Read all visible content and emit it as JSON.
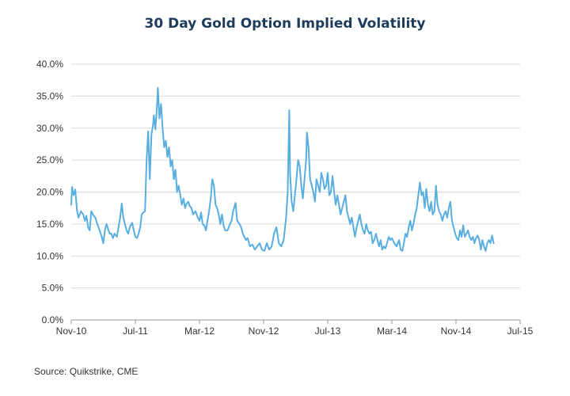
{
  "chart_data": {
    "type": "line",
    "title": "30 Day Gold Option Implied Volatility",
    "source": "Source: Quikstrike, CME",
    "xlabel": "",
    "ylabel": "",
    "x_ticks": [
      "Nov-10",
      "Jul-11",
      "Mar-12",
      "Nov-12",
      "Jul-13",
      "Mar-14",
      "Nov-14",
      "Jul-15"
    ],
    "y_ticks": [
      "0.0%",
      "5.0%",
      "10.0%",
      "15.0%",
      "20.0%",
      "25.0%",
      "30.0%",
      "35.0%",
      "40.0%"
    ],
    "ylim": [
      0,
      40
    ],
    "x_range_months": [
      0,
      56
    ],
    "grid": "horizontal",
    "series": [
      {
        "color": "#58aee0",
        "points": [
          [
            0.0,
            18.0
          ],
          [
            0.1,
            20.8
          ],
          [
            0.3,
            19.5
          ],
          [
            0.5,
            20.4
          ],
          [
            0.7,
            17.3
          ],
          [
            0.9,
            16.0
          ],
          [
            1.2,
            17.0
          ],
          [
            1.5,
            16.5
          ],
          [
            1.7,
            15.5
          ],
          [
            1.9,
            16.3
          ],
          [
            2.1,
            14.5
          ],
          [
            2.3,
            14.0
          ],
          [
            2.5,
            17.0
          ],
          [
            2.7,
            16.5
          ],
          [
            3.0,
            16.0
          ],
          [
            3.2,
            15.2
          ],
          [
            3.4,
            14.5
          ],
          [
            3.6,
            13.8
          ],
          [
            3.8,
            13.0
          ],
          [
            4.0,
            12.0
          ],
          [
            4.2,
            14.0
          ],
          [
            4.4,
            15.0
          ],
          [
            4.6,
            14.2
          ],
          [
            4.8,
            13.5
          ],
          [
            5.0,
            13.5
          ],
          [
            5.2,
            12.8
          ],
          [
            5.4,
            13.5
          ],
          [
            5.7,
            13.0
          ],
          [
            5.9,
            14.5
          ],
          [
            6.1,
            16.0
          ],
          [
            6.3,
            18.2
          ],
          [
            6.5,
            16.0
          ],
          [
            6.7,
            15.0
          ],
          [
            6.9,
            14.0
          ],
          [
            7.1,
            13.5
          ],
          [
            7.3,
            14.5
          ],
          [
            7.6,
            15.2
          ],
          [
            7.8,
            14.0
          ],
          [
            8.0,
            13.0
          ],
          [
            8.2,
            12.8
          ],
          [
            8.4,
            13.5
          ],
          [
            8.6,
            14.5
          ],
          [
            8.8,
            16.5
          ],
          [
            9.0,
            16.8
          ],
          [
            9.2,
            17.0
          ],
          [
            9.4,
            25.0
          ],
          [
            9.6,
            29.5
          ],
          [
            9.8,
            22.0
          ],
          [
            10.0,
            29.0
          ],
          [
            10.2,
            30.5
          ],
          [
            10.3,
            32.0
          ],
          [
            10.5,
            29.8
          ],
          [
            10.7,
            33.5
          ],
          [
            10.8,
            36.3
          ],
          [
            11.0,
            31.5
          ],
          [
            11.2,
            33.8
          ],
          [
            11.4,
            30.0
          ],
          [
            11.6,
            27.0
          ],
          [
            11.8,
            28.0
          ],
          [
            12.0,
            25.5
          ],
          [
            12.2,
            27.0
          ],
          [
            12.4,
            24.0
          ],
          [
            12.6,
            25.0
          ],
          [
            12.8,
            22.0
          ],
          [
            13.0,
            23.5
          ],
          [
            13.2,
            20.0
          ],
          [
            13.4,
            21.0
          ],
          [
            13.6,
            19.5
          ],
          [
            13.8,
            18.0
          ],
          [
            14.0,
            19.0
          ],
          [
            14.2,
            17.5
          ],
          [
            14.4,
            18.2
          ],
          [
            14.6,
            18.5
          ],
          [
            14.8,
            17.8
          ],
          [
            15.0,
            17.5
          ],
          [
            15.2,
            16.5
          ],
          [
            15.5,
            17.0
          ],
          [
            15.8,
            16.0
          ],
          [
            16.0,
            15.5
          ],
          [
            16.2,
            16.8
          ],
          [
            16.4,
            15.0
          ],
          [
            16.6,
            14.8
          ],
          [
            16.8,
            14.0
          ],
          [
            17.0,
            15.5
          ],
          [
            17.2,
            17.0
          ],
          [
            17.4,
            19.0
          ],
          [
            17.6,
            22.0
          ],
          [
            17.8,
            21.0
          ],
          [
            18.0,
            18.0
          ],
          [
            18.2,
            17.5
          ],
          [
            18.4,
            16.5
          ],
          [
            18.6,
            15.0
          ],
          [
            18.8,
            16.5
          ],
          [
            19.0,
            14.8
          ],
          [
            19.2,
            14.0
          ],
          [
            19.5,
            14.0
          ],
          [
            19.8,
            15.0
          ],
          [
            20.0,
            15.5
          ],
          [
            20.2,
            17.0
          ],
          [
            20.5,
            18.3
          ],
          [
            20.7,
            15.5
          ],
          [
            21.0,
            15.0
          ],
          [
            21.2,
            14.5
          ],
          [
            21.4,
            13.5
          ],
          [
            21.6,
            13.0
          ],
          [
            21.8,
            12.5
          ],
          [
            22.0,
            12.8
          ],
          [
            22.3,
            11.5
          ],
          [
            22.6,
            11.8
          ],
          [
            22.9,
            11.0
          ],
          [
            23.2,
            11.5
          ],
          [
            23.5,
            12.0
          ],
          [
            23.8,
            11.0
          ],
          [
            24.1,
            10.8
          ],
          [
            24.4,
            12.0
          ],
          [
            24.7,
            11.0
          ],
          [
            25.0,
            11.5
          ],
          [
            25.3,
            13.5
          ],
          [
            25.6,
            14.5
          ],
          [
            25.9,
            12.0
          ],
          [
            26.2,
            11.5
          ],
          [
            26.5,
            12.5
          ],
          [
            26.8,
            16.0
          ],
          [
            27.0,
            20.0
          ],
          [
            27.2,
            32.8
          ],
          [
            27.3,
            23.0
          ],
          [
            27.5,
            18.5
          ],
          [
            27.7,
            17.0
          ],
          [
            27.9,
            19.5
          ],
          [
            28.1,
            22.0
          ],
          [
            28.3,
            25.0
          ],
          [
            28.5,
            24.0
          ],
          [
            28.7,
            21.0
          ],
          [
            28.9,
            19.0
          ],
          [
            29.1,
            22.0
          ],
          [
            29.3,
            25.0
          ],
          [
            29.4,
            29.3
          ],
          [
            29.6,
            27.0
          ],
          [
            29.8,
            22.0
          ],
          [
            30.0,
            21.0
          ],
          [
            30.2,
            20.0
          ],
          [
            30.4,
            18.5
          ],
          [
            30.6,
            22.0
          ],
          [
            30.8,
            21.0
          ],
          [
            31.0,
            20.0
          ],
          [
            31.2,
            23.0
          ],
          [
            31.4,
            22.0
          ],
          [
            31.6,
            20.5
          ],
          [
            31.8,
            21.0
          ],
          [
            32.0,
            23.0
          ],
          [
            32.2,
            19.5
          ],
          [
            32.4,
            20.0
          ],
          [
            32.6,
            22.5
          ],
          [
            32.8,
            20.0
          ],
          [
            33.0,
            18.0
          ],
          [
            33.2,
            19.5
          ],
          [
            33.4,
            18.0
          ],
          [
            33.6,
            16.5
          ],
          [
            33.8,
            17.5
          ],
          [
            34.0,
            18.5
          ],
          [
            34.2,
            19.5
          ],
          [
            34.4,
            17.0
          ],
          [
            34.6,
            16.0
          ],
          [
            34.8,
            15.0
          ],
          [
            35.0,
            16.0
          ],
          [
            35.2,
            14.5
          ],
          [
            35.4,
            13.0
          ],
          [
            35.6,
            14.5
          ],
          [
            35.8,
            15.5
          ],
          [
            36.0,
            16.5
          ],
          [
            36.2,
            15.0
          ],
          [
            36.4,
            14.0
          ],
          [
            36.6,
            13.5
          ],
          [
            36.8,
            15.0
          ],
          [
            37.0,
            14.0
          ],
          [
            37.2,
            13.5
          ],
          [
            37.4,
            13.8
          ],
          [
            37.6,
            12.0
          ],
          [
            37.8,
            12.5
          ],
          [
            38.0,
            13.5
          ],
          [
            38.2,
            12.5
          ],
          [
            38.4,
            11.5
          ],
          [
            38.6,
            12.5
          ],
          [
            38.8,
            11.0
          ],
          [
            39.0,
            11.5
          ],
          [
            39.2,
            11.2
          ],
          [
            39.4,
            12.0
          ],
          [
            39.6,
            13.0
          ],
          [
            39.8,
            12.5
          ],
          [
            40.0,
            12.8
          ],
          [
            40.3,
            12.0
          ],
          [
            40.6,
            11.5
          ],
          [
            40.9,
            12.5
          ],
          [
            41.1,
            11.0
          ],
          [
            41.3,
            10.8
          ],
          [
            41.5,
            12.0
          ],
          [
            41.7,
            13.5
          ],
          [
            41.9,
            13.0
          ],
          [
            42.1,
            14.5
          ],
          [
            42.3,
            15.5
          ],
          [
            42.5,
            14.0
          ],
          [
            42.7,
            15.0
          ],
          [
            42.9,
            16.5
          ],
          [
            43.1,
            17.5
          ],
          [
            43.3,
            19.5
          ],
          [
            43.5,
            21.5
          ],
          [
            43.7,
            19.5
          ],
          [
            43.9,
            20.0
          ],
          [
            44.1,
            17.5
          ],
          [
            44.3,
            20.5
          ],
          [
            44.5,
            18.0
          ],
          [
            44.7,
            17.0
          ],
          [
            44.9,
            18.5
          ],
          [
            45.1,
            16.5
          ],
          [
            45.3,
            17.0
          ],
          [
            45.5,
            21.0
          ],
          [
            45.7,
            18.0
          ],
          [
            45.9,
            17.0
          ],
          [
            46.1,
            16.5
          ],
          [
            46.3,
            15.5
          ],
          [
            46.5,
            16.5
          ],
          [
            46.7,
            17.0
          ],
          [
            46.9,
            16.0
          ],
          [
            47.1,
            17.5
          ],
          [
            47.3,
            18.5
          ],
          [
            47.5,
            15.5
          ],
          [
            47.7,
            14.5
          ],
          [
            47.9,
            13.5
          ],
          [
            48.1,
            12.8
          ],
          [
            48.3,
            12.5
          ],
          [
            48.5,
            14.0
          ],
          [
            48.7,
            13.0
          ],
          [
            48.9,
            14.8
          ],
          [
            49.1,
            13.0
          ],
          [
            49.3,
            13.5
          ],
          [
            49.5,
            14.0
          ],
          [
            49.7,
            13.0
          ],
          [
            49.9,
            12.5
          ],
          [
            50.1,
            13.0
          ],
          [
            50.3,
            12.0
          ],
          [
            50.5,
            12.8
          ],
          [
            50.7,
            13.2
          ],
          [
            50.9,
            12.5
          ],
          [
            51.1,
            11.0
          ],
          [
            51.3,
            12.5
          ],
          [
            51.5,
            11.5
          ],
          [
            51.7,
            10.8
          ],
          [
            51.9,
            12.0
          ],
          [
            52.1,
            12.5
          ],
          [
            52.3,
            12.0
          ],
          [
            52.5,
            13.2
          ],
          [
            52.7,
            12.0
          ]
        ]
      }
    ]
  }
}
